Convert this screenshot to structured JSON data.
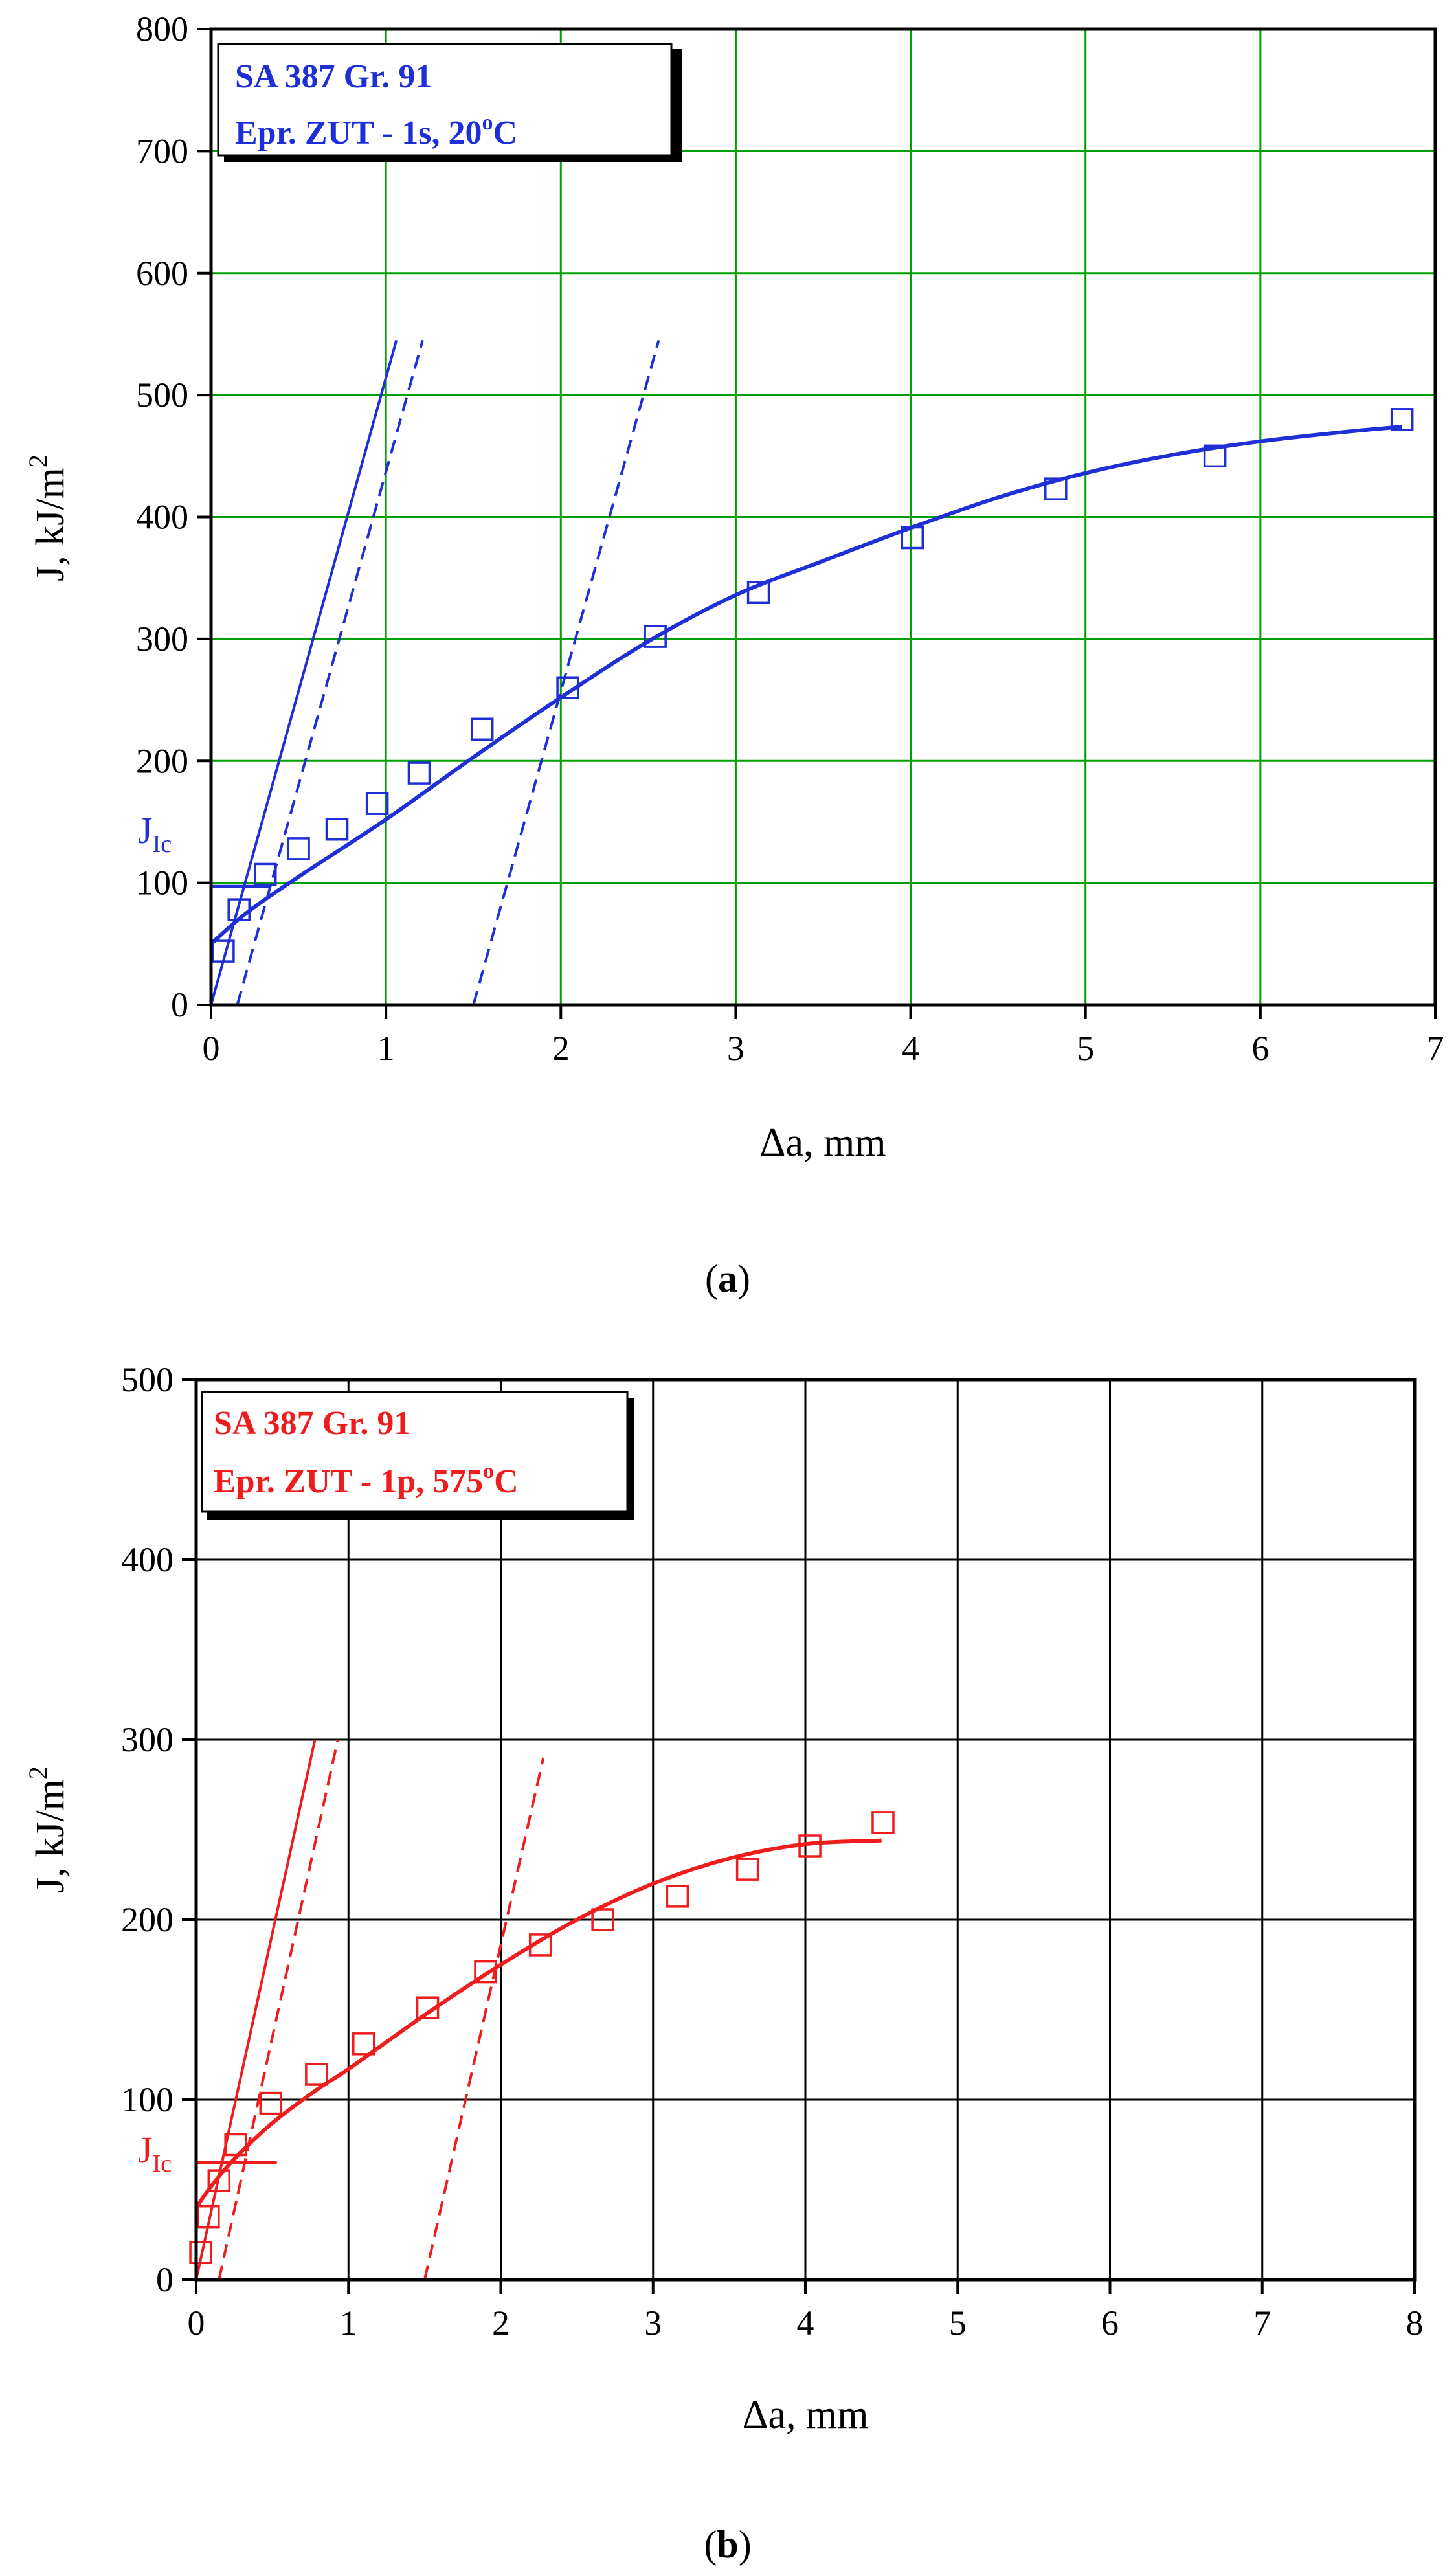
{
  "colors": {
    "panel_a": "#1f2fd6",
    "panel_b": "#ee1c1c",
    "grid_a": "#00a000",
    "grid_b": "#000000"
  },
  "chart_data": [
    {
      "type": "scatter",
      "panel_label": "a",
      "caption_text": "a",
      "legend_lines": [
        "SA 387 Gr. 91",
        "Epr. ZUT - 1s,  20"
      ],
      "legend_temp_sup": "o",
      "legend_temp_unit": "C",
      "xlabel": "Δa,  mm",
      "ylabel": "J,  kJ/m",
      "ylabel_sup": "2",
      "xlim": [
        0,
        7
      ],
      "ylim": [
        0,
        800
      ],
      "xticks": [
        0,
        1,
        2,
        3,
        4,
        5,
        6,
        7
      ],
      "yticks": [
        0,
        100,
        200,
        300,
        400,
        500,
        600,
        700,
        800
      ],
      "grid": true,
      "legend_position": "top-left",
      "series": [
        {
          "kind": "points",
          "x": [
            0.07,
            0.16,
            0.31,
            0.5,
            0.72,
            0.95,
            1.19,
            1.55,
            2.04,
            2.54,
            3.13,
            4.01,
            4.83,
            5.74,
            6.81
          ],
          "y": [
            44,
            78,
            107,
            128,
            144,
            165,
            190,
            226,
            260,
            302,
            338,
            383,
            423,
            450,
            480
          ]
        },
        {
          "kind": "curve",
          "x": [
            0.0,
            0.2,
            0.5,
            1.0,
            1.5,
            2.0,
            2.5,
            3.0,
            3.5,
            4.0,
            4.5,
            5.0,
            5.5,
            6.0,
            6.5,
            6.81
          ],
          "y": [
            50,
            75,
            105,
            152,
            203,
            252,
            298,
            336,
            364,
            391,
            416,
            436,
            451,
            462,
            470,
            474
          ]
        },
        {
          "kind": "blunting_line",
          "x": [
            0.0,
            1.06
          ],
          "y": [
            0,
            545
          ]
        },
        {
          "kind": "offset_dashed",
          "x": [
            0.15,
            1.21
          ],
          "y": [
            0,
            545
          ]
        },
        {
          "kind": "offset_dashed",
          "x": [
            1.5,
            2.56
          ],
          "y": [
            0,
            545
          ]
        },
        {
          "kind": "jic_line",
          "x": [
            0.0,
            0.33
          ],
          "y": [
            97,
            97
          ]
        }
      ],
      "annotations": [
        {
          "text": "J",
          "sub": "Ic"
        }
      ]
    },
    {
      "type": "scatter",
      "panel_label": "b",
      "caption_text": "b",
      "legend_lines": [
        "SA 387 Gr. 91",
        "Epr. ZUT - 1p,  575"
      ],
      "legend_temp_sup": "o",
      "legend_temp_unit": "C",
      "xlabel": "Δa,  mm",
      "ylabel": "J,  kJ/m",
      "ylabel_sup": "2",
      "xlim": [
        0,
        8
      ],
      "ylim": [
        0,
        500
      ],
      "xticks": [
        0,
        1,
        2,
        3,
        4,
        5,
        6,
        7,
        8
      ],
      "yticks": [
        0,
        100,
        200,
        300,
        400,
        500
      ],
      "grid": true,
      "legend_position": "top-left",
      "series": [
        {
          "kind": "points",
          "x": [
            0.03,
            0.08,
            0.15,
            0.26,
            0.49,
            0.79,
            1.1,
            1.52,
            1.9,
            2.26,
            2.67,
            3.16,
            3.62,
            4.03,
            4.51
          ],
          "y": [
            15,
            35,
            55,
            75,
            98,
            114,
            131,
            151,
            171,
            186,
            200,
            213,
            228,
            241,
            254
          ]
        },
        {
          "kind": "curve",
          "x": [
            0.0,
            0.1,
            0.25,
            0.5,
            0.8,
            1.0,
            1.5,
            2.0,
            2.5,
            3.0,
            3.5,
            4.0,
            4.5
          ],
          "y": [
            40,
            52,
            67,
            87,
            106,
            117,
            147,
            175,
            200,
            220,
            234,
            242,
            244
          ]
        },
        {
          "kind": "blunting_line",
          "x": [
            0.0,
            0.78
          ],
          "y": [
            0,
            300
          ]
        },
        {
          "kind": "offset_dashed",
          "x": [
            0.15,
            0.93
          ],
          "y": [
            0,
            300
          ]
        },
        {
          "kind": "offset_dashed",
          "x": [
            1.5,
            2.28
          ],
          "y": [
            0,
            290
          ]
        },
        {
          "kind": "jic_line",
          "x": [
            0.0,
            0.53
          ],
          "y": [
            65,
            65
          ]
        }
      ],
      "annotations": [
        {
          "text": "J",
          "sub": "Ic"
        }
      ]
    }
  ]
}
